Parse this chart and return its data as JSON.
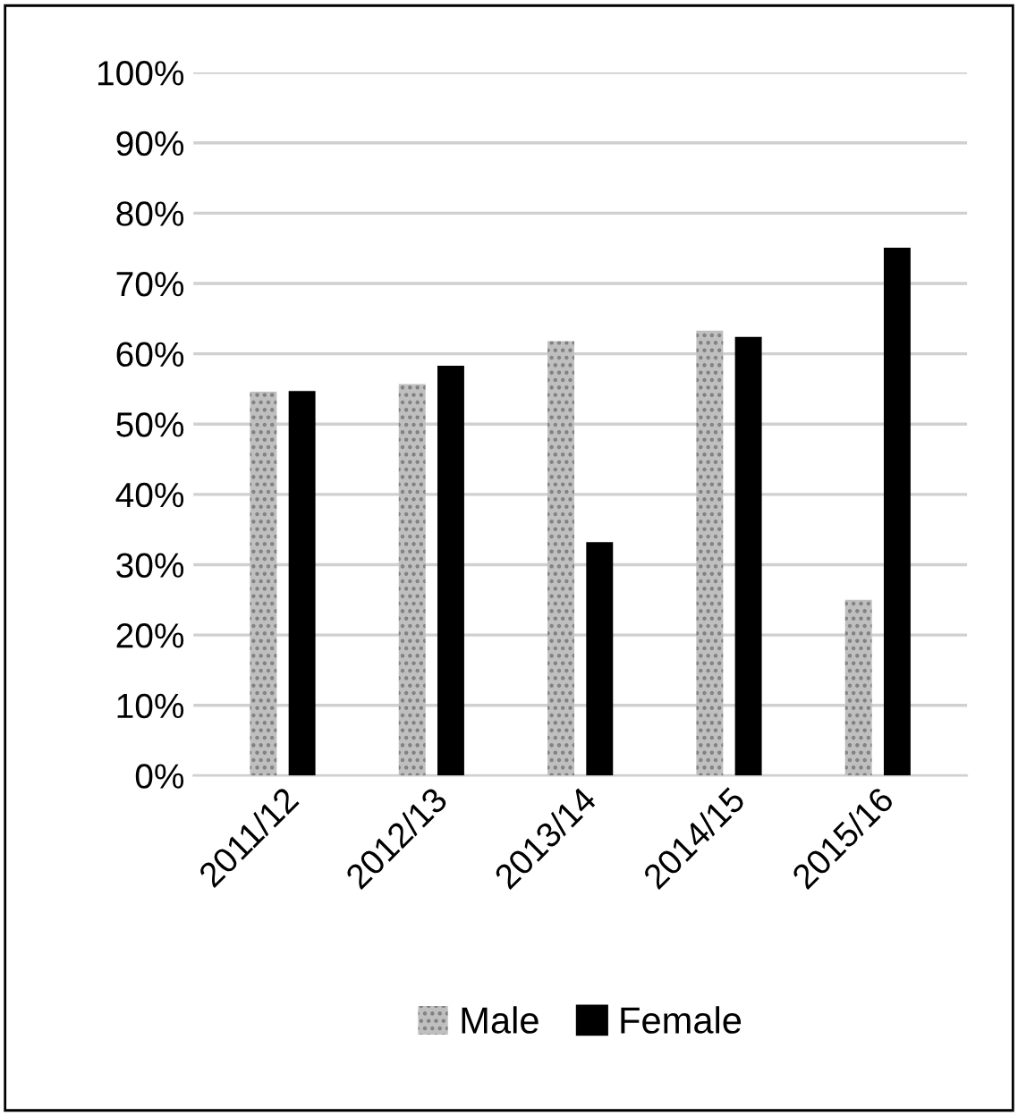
{
  "chart_data": {
    "type": "bar",
    "categories": [
      "2011/12",
      "2012/13",
      "2013/14",
      "2014/15",
      "2015/16"
    ],
    "series": [
      {
        "name": "Male",
        "color": "#bfbfbf",
        "values": [
          54.6,
          55.7,
          61.8,
          63.3,
          25.0
        ]
      },
      {
        "name": "Female",
        "color": "#000000",
        "values": [
          54.7,
          58.3,
          33.2,
          62.4,
          75.1
        ]
      }
    ],
    "ylim": [
      0,
      100
    ],
    "yticks": [
      {
        "value": 0,
        "label": "0%"
      },
      {
        "value": 10,
        "label": "10%"
      },
      {
        "value": 20,
        "label": "20%"
      },
      {
        "value": 30,
        "label": "30%"
      },
      {
        "value": 40,
        "label": "40%"
      },
      {
        "value": 50,
        "label": "50%"
      },
      {
        "value": 60,
        "label": "60%"
      },
      {
        "value": 70,
        "label": "70%"
      },
      {
        "value": 80,
        "label": "80%"
      },
      {
        "value": 90,
        "label": "90%"
      },
      {
        "value": 100,
        "label": "100%"
      }
    ],
    "grid": "y",
    "legend": "bottom"
  }
}
